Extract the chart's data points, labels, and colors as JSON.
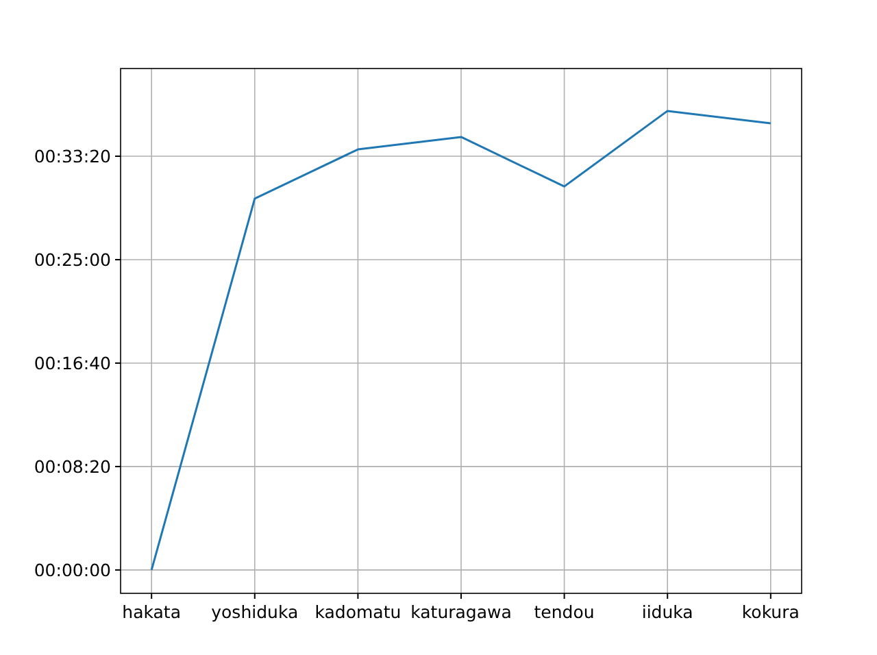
{
  "chart_data": {
    "type": "line",
    "categories": [
      "hakata",
      "yoshiduka",
      "kadomatu",
      "katuragawa",
      "tendou",
      "iiduka",
      "kokura"
    ],
    "series": [
      {
        "color": "#1f77b4",
        "values": [
          0,
          1795,
          2033,
          2093,
          1854,
          2219,
          2159
        ]
      }
    ],
    "ylim": [
      -113,
      2424
    ],
    "yticks": [
      {
        "value": 0,
        "label": "00:00:00"
      },
      {
        "value": 500,
        "label": "00:08:20"
      },
      {
        "value": 1000,
        "label": "00:16:40"
      },
      {
        "value": 1500,
        "label": "00:25:00"
      },
      {
        "value": 2000,
        "label": "00:33:20"
      }
    ],
    "grid": true,
    "marker": "none",
    "line_style": "solid"
  }
}
